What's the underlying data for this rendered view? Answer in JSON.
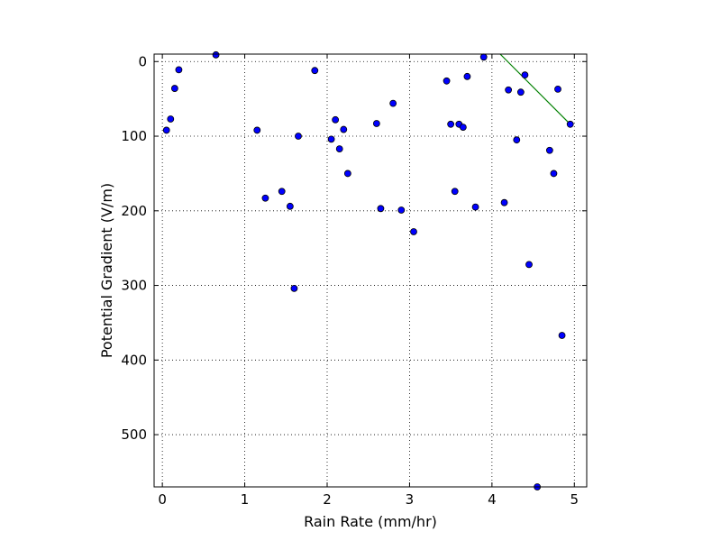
{
  "chart_data": {
    "type": "scatter",
    "title": "",
    "xlabel": "Rain Rate (mm/hr)",
    "ylabel": "Potential Gradient (V/m)",
    "xlim": [
      -0.1,
      5.15
    ],
    "ylim": [
      570,
      -10
    ],
    "y_inverted": true,
    "grid": true,
    "x_ticks": [
      "0",
      "1",
      "2",
      "3",
      "4",
      "5"
    ],
    "x_tick_values": [
      0,
      1,
      2,
      3,
      4,
      5
    ],
    "y_ticks": [
      "0",
      "100",
      "200",
      "300",
      "400",
      "500"
    ],
    "y_tick_values": [
      0,
      100,
      200,
      300,
      400,
      500
    ],
    "marker_color": "#0000ff",
    "marker_edge_color": "#000000",
    "line_color": "#008000",
    "points": [
      {
        "x": 0.05,
        "y": 92
      },
      {
        "x": 0.1,
        "y": 77
      },
      {
        "x": 0.15,
        "y": 36
      },
      {
        "x": 0.2,
        "y": 11
      },
      {
        "x": 0.65,
        "y": -9
      },
      {
        "x": 1.15,
        "y": 92
      },
      {
        "x": 1.25,
        "y": 183
      },
      {
        "x": 1.45,
        "y": 174
      },
      {
        "x": 1.55,
        "y": 194
      },
      {
        "x": 1.6,
        "y": 304
      },
      {
        "x": 1.65,
        "y": 100
      },
      {
        "x": 1.85,
        "y": 12
      },
      {
        "x": 2.05,
        "y": 104
      },
      {
        "x": 2.1,
        "y": 78
      },
      {
        "x": 2.15,
        "y": 117
      },
      {
        "x": 2.2,
        "y": 91
      },
      {
        "x": 2.25,
        "y": 150
      },
      {
        "x": 2.6,
        "y": 83
      },
      {
        "x": 2.65,
        "y": 197
      },
      {
        "x": 2.8,
        "y": 56
      },
      {
        "x": 2.9,
        "y": 199
      },
      {
        "x": 3.05,
        "y": 228
      },
      {
        "x": 3.45,
        "y": 26
      },
      {
        "x": 3.5,
        "y": 84
      },
      {
        "x": 3.55,
        "y": 174
      },
      {
        "x": 3.6,
        "y": 84
      },
      {
        "x": 3.65,
        "y": 88
      },
      {
        "x": 3.7,
        "y": 20
      },
      {
        "x": 3.8,
        "y": 195
      },
      {
        "x": 3.9,
        "y": -6
      },
      {
        "x": 4.15,
        "y": 189
      },
      {
        "x": 4.2,
        "y": 38
      },
      {
        "x": 4.3,
        "y": 105
      },
      {
        "x": 4.35,
        "y": 41
      },
      {
        "x": 4.4,
        "y": 18
      },
      {
        "x": 4.45,
        "y": 272
      },
      {
        "x": 4.55,
        "y": 570
      },
      {
        "x": 4.7,
        "y": 119
      },
      {
        "x": 4.75,
        "y": 150
      },
      {
        "x": 4.8,
        "y": 37
      },
      {
        "x": 4.85,
        "y": 367
      },
      {
        "x": 4.95,
        "y": 84
      }
    ],
    "line": {
      "x": [
        4.1,
        4.95
      ],
      "y": [
        -10,
        84
      ]
    }
  }
}
